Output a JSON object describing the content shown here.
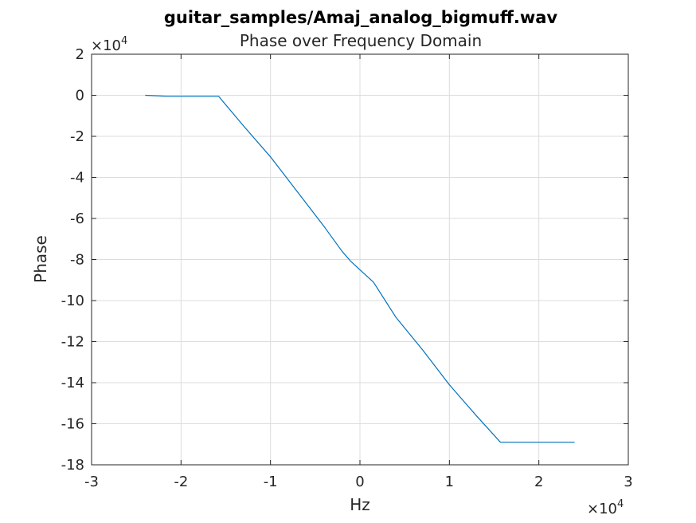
{
  "chart_data": {
    "type": "line",
    "title": "guitar_samples/Amaj_analog_bigmuff.wav",
    "subtitle": "Phase over Frequency Domain",
    "xlabel": "Hz",
    "ylabel": "Phase",
    "x_multiplier": "×10",
    "x_multiplier_exp": "4",
    "y_multiplier": "×10",
    "y_multiplier_exp": "4",
    "xlim": [
      -3,
      3
    ],
    "ylim": [
      -18,
      2
    ],
    "xticks": [
      "-3",
      "-2",
      "-1",
      "0",
      "1",
      "2",
      "3"
    ],
    "yticks": [
      "2",
      "0",
      "-2",
      "-4",
      "-6",
      "-8",
      "-10",
      "-12",
      "-14",
      "-16",
      "-18"
    ],
    "grid": true,
    "line_color": "#0072BD",
    "series": [
      {
        "name": "phase",
        "x": [
          -2.4,
          -2.15,
          -1.58,
          -1.3,
          -1.0,
          -0.7,
          -0.4,
          -0.2,
          -0.1,
          0.0,
          0.15,
          0.4,
          0.7,
          1.0,
          1.3,
          1.57,
          2.0,
          2.4
        ],
        "y": [
          0.0,
          -0.05,
          -0.05,
          -1.5,
          -3.0,
          -4.7,
          -6.4,
          -7.6,
          -8.1,
          -8.5,
          -9.1,
          -10.8,
          -12.4,
          -14.1,
          -15.6,
          -16.9,
          -16.9,
          -16.9
        ]
      }
    ]
  }
}
